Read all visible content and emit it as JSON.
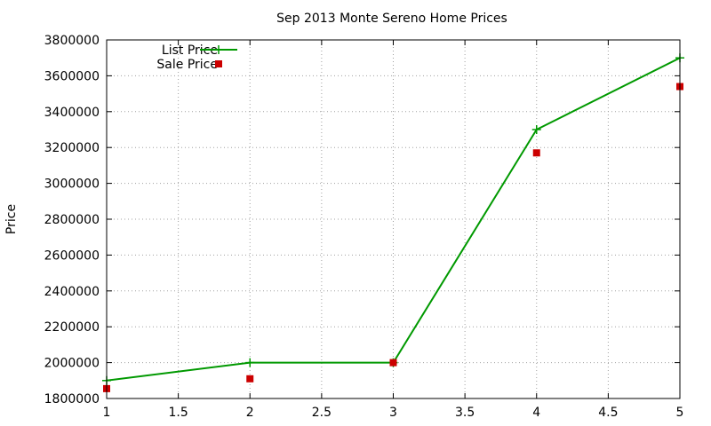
{
  "chart_data": {
    "type": "line",
    "title": "Sep 2013 Monte Sereno Home Prices",
    "xlabel": "",
    "ylabel": "Price",
    "xlim": [
      1,
      5
    ],
    "ylim": [
      1800000,
      3800000
    ],
    "x_ticks": [
      1,
      1.5,
      2,
      2.5,
      3,
      3.5,
      4,
      4.5,
      5
    ],
    "x_tick_labels": [
      "1",
      "1.5",
      "2",
      "2.5",
      "3",
      "3.5",
      "4",
      "4.5",
      "5"
    ],
    "y_ticks": [
      1800000,
      2000000,
      2200000,
      2400000,
      2600000,
      2800000,
      3000000,
      3200000,
      3400000,
      3600000,
      3800000
    ],
    "y_tick_labels": [
      "1800000",
      "2000000",
      "2200000",
      "2400000",
      "2600000",
      "2800000",
      "3000000",
      "3200000",
      "3400000",
      "3600000",
      "3800000"
    ],
    "grid": true,
    "legend_position": "top-left",
    "series": [
      {
        "name": "List Price",
        "style": "line-points",
        "marker": "plus",
        "color": "#009900",
        "x": [
          1,
          2,
          3,
          4,
          5
        ],
        "y": [
          1900000,
          2000000,
          2000000,
          3300000,
          3700000
        ]
      },
      {
        "name": "Sale Price",
        "style": "points",
        "marker": "square",
        "color": "#cc0000",
        "x": [
          1,
          2,
          3,
          4,
          5
        ],
        "y": [
          1855000,
          1910000,
          2000000,
          3170000,
          3540000
        ]
      }
    ]
  }
}
